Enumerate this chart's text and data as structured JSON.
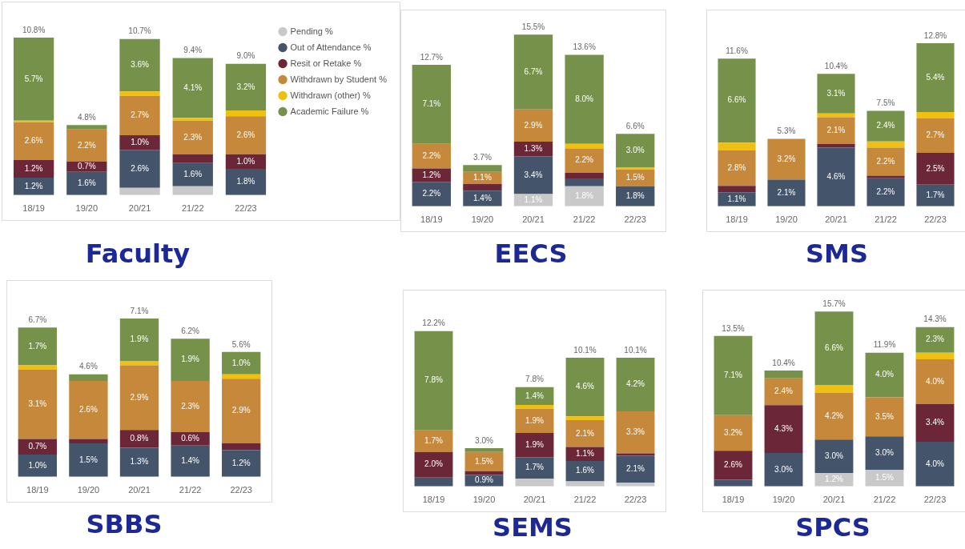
{
  "chart_data": [
    {
      "type": "bar",
      "title": "Faculty",
      "stacked": true,
      "legend": "right",
      "categories": [
        "18/19",
        "19/20",
        "20/21",
        "21/22",
        "22/23"
      ],
      "series": [
        {
          "name": "Pending %",
          "color": "#c9c9c9",
          "values": [
            0,
            0,
            0.5,
            0.6,
            0
          ],
          "value_labels": [
            null,
            null,
            null,
            null,
            null
          ]
        },
        {
          "name": "Out of Attendance %",
          "color": "#44546a",
          "values": [
            1.2,
            1.6,
            2.6,
            1.6,
            1.8
          ],
          "value_labels": [
            "1.2%",
            "1.6%",
            "2.6%",
            "1.6%",
            "1.8%"
          ]
        },
        {
          "name": "Resit or Retake %",
          "color": "#6b2737",
          "values": [
            1.2,
            0.7,
            1.0,
            0.6,
            1.0
          ],
          "value_labels": [
            "1.2%",
            "0.7%",
            "1.0%",
            null,
            "1.0%"
          ]
        },
        {
          "name": "Withdrawn by Student %",
          "color": "#c6883a",
          "values": [
            2.6,
            2.2,
            2.7,
            2.3,
            2.6
          ],
          "value_labels": [
            "2.6%",
            "2.2%",
            "2.7%",
            "2.3%",
            "2.6%"
          ]
        },
        {
          "name": "Withdrawn (other) %",
          "color": "#f0c010",
          "values": [
            0.1,
            0,
            0.3,
            0.2,
            0.4
          ],
          "value_labels": [
            null,
            null,
            null,
            null,
            null
          ]
        },
        {
          "name": "Academic Failure %",
          "color": "#76924a",
          "values": [
            5.7,
            0.3,
            3.6,
            4.1,
            3.2
          ],
          "value_labels": [
            "5.7%",
            null,
            "3.6%",
            "4.1%",
            "3.2%"
          ]
        }
      ],
      "totals": [
        "10.8%",
        "4.8%",
        "10.7%",
        "9.4%",
        "9.0%"
      ]
    },
    {
      "type": "bar",
      "title": "EECS",
      "stacked": true,
      "categories": [
        "18/19",
        "19/20",
        "20/21",
        "21/22",
        "22/23"
      ],
      "series": [
        {
          "color": "#c9c9c9",
          "values": [
            0,
            0,
            1.1,
            1.8,
            null
          ],
          "value_labels": [
            null,
            null,
            "1.1%",
            "1.8%",
            null
          ]
        },
        {
          "color": "#44546a",
          "values": [
            2.2,
            1.4,
            3.4,
            0.7,
            1.8
          ],
          "value_labels": [
            "2.2%",
            "1.4%",
            "3.4%",
            null,
            "1.8%"
          ]
        },
        {
          "color": "#6b2737",
          "values": [
            1.2,
            0.6,
            1.3,
            0.5,
            0
          ],
          "value_labels": [
            "1.2%",
            null,
            "1.3%",
            null,
            null
          ]
        },
        {
          "color": "#c6883a",
          "values": [
            2.2,
            1.1,
            2.9,
            2.2,
            1.5
          ],
          "value_labels": [
            "2.2%",
            "1.1%",
            "2.9%",
            "2.2%",
            "1.5%"
          ]
        },
        {
          "color": "#f0c010",
          "values": [
            0,
            0,
            0,
            0.4,
            0.2
          ],
          "value_labels": [
            null,
            null,
            null,
            null,
            null
          ]
        },
        {
          "color": "#76924a",
          "values": [
            7.1,
            0.6,
            6.7,
            8.0,
            3.0
          ],
          "value_labels": [
            "7.1%",
            null,
            "6.7%",
            "8.0%",
            "3.0%"
          ]
        }
      ],
      "totals": [
        "12.7%",
        "3.7%",
        "15.5%",
        "13.6%",
        "6.6%"
      ]
    },
    {
      "type": "bar",
      "title": "SMS",
      "stacked": true,
      "categories": [
        "18/19",
        "19/20",
        "20/21",
        "21/22",
        "22/23"
      ],
      "series": [
        {
          "color": "#44546a",
          "values": [
            1.1,
            2.1,
            4.6,
            2.2,
            1.7
          ],
          "value_labels": [
            "1.1%",
            "2.1%",
            "4.6%",
            "2.2%",
            "1.7%"
          ]
        },
        {
          "color": "#6b2737",
          "values": [
            0.5,
            0,
            0.3,
            0.2,
            2.5
          ],
          "value_labels": [
            null,
            null,
            null,
            null,
            "2.5%"
          ]
        },
        {
          "color": "#c6883a",
          "values": [
            2.8,
            3.2,
            2.1,
            2.2,
            2.7
          ],
          "value_labels": [
            "2.8%",
            "3.2%",
            "2.1%",
            "2.2%",
            "2.7%"
          ]
        },
        {
          "color": "#f0c010",
          "values": [
            0.6,
            0,
            0.3,
            0.5,
            0.5
          ],
          "value_labels": [
            null,
            null,
            null,
            null,
            null
          ]
        },
        {
          "color": "#76924a",
          "values": [
            6.6,
            0,
            3.1,
            2.4,
            5.4
          ],
          "value_labels": [
            "6.6%",
            null,
            "3.1%",
            "2.4%",
            "5.4%"
          ]
        }
      ],
      "totals": [
        "11.6%",
        "5.3%",
        "10.4%",
        "7.5%",
        "12.8%"
      ]
    },
    {
      "type": "bar",
      "title": "SBBS",
      "stacked": true,
      "categories": [
        "18/19",
        "19/20",
        "20/21",
        "21/22",
        "22/23"
      ],
      "series": [
        {
          "color": "#44546a",
          "values": [
            1.0,
            1.5,
            1.3,
            1.4,
            1.2
          ],
          "value_labels": [
            "1.0%",
            "1.5%",
            "1.3%",
            "1.4%",
            "1.2%"
          ]
        },
        {
          "color": "#6b2737",
          "values": [
            0.7,
            0.2,
            0.8,
            0.6,
            0.3
          ],
          "value_labels": [
            "0.7%",
            null,
            "0.8%",
            "0.6%",
            null
          ]
        },
        {
          "color": "#c6883a",
          "values": [
            3.1,
            2.6,
            2.9,
            2.3,
            2.9
          ],
          "value_labels": [
            "3.1%",
            "2.6%",
            "2.9%",
            "2.3%",
            "2.9%"
          ]
        },
        {
          "color": "#f0c010",
          "values": [
            0.2,
            0,
            0.2,
            0,
            0.2
          ],
          "value_labels": [
            null,
            null,
            null,
            null,
            null
          ]
        },
        {
          "color": "#76924a",
          "values": [
            1.7,
            0.3,
            1.9,
            1.9,
            1.0
          ],
          "value_labels": [
            "1.7%",
            null,
            "1.9%",
            "1.9%",
            "1.0%"
          ]
        }
      ],
      "totals": [
        "6.7%",
        "4.6%",
        "7.1%",
        "6.2%",
        "5.6%"
      ]
    },
    {
      "type": "bar",
      "title": "SEMS",
      "stacked": true,
      "categories": [
        "18/19",
        "19/20",
        "20/21",
        "21/22",
        "22/23"
      ],
      "series": [
        {
          "color": "#c9c9c9",
          "values": [
            0,
            0,
            0.6,
            0.4,
            0.3
          ],
          "value_labels": [
            null,
            null,
            null,
            null,
            null
          ]
        },
        {
          "color": "#44546a",
          "values": [
            0.7,
            0.9,
            1.7,
            1.6,
            2.1
          ],
          "value_labels": [
            null,
            "0.9%",
            "1.7%",
            "1.6%",
            "2.1%"
          ]
        },
        {
          "color": "#6b2737",
          "values": [
            2.0,
            0.3,
            1.9,
            1.1,
            0.2
          ],
          "value_labels": [
            "2.0%",
            null,
            "1.9%",
            "1.1%",
            null
          ]
        },
        {
          "color": "#c6883a",
          "values": [
            1.7,
            1.5,
            1.9,
            2.1,
            3.3
          ],
          "value_labels": [
            "1.7%",
            "1.5%",
            "1.9%",
            "2.1%",
            "3.3%"
          ]
        },
        {
          "color": "#f0c010",
          "values": [
            0,
            0,
            0.3,
            0.3,
            0
          ],
          "value_labels": [
            null,
            null,
            null,
            null,
            null
          ]
        },
        {
          "color": "#76924a",
          "values": [
            7.8,
            0.3,
            1.4,
            4.6,
            4.2
          ],
          "value_labels": [
            "7.8%",
            null,
            "1.4%",
            "4.6%",
            "4.2%"
          ]
        }
      ],
      "totals": [
        "12.2%",
        "3.0%",
        "7.8%",
        "10.1%",
        "10.1%"
      ]
    },
    {
      "type": "bar",
      "title": "SPCS",
      "stacked": true,
      "categories": [
        "18/19",
        "19/20",
        "20/21",
        "21/22",
        "22/23"
      ],
      "series": [
        {
          "color": "#c9c9c9",
          "values": [
            0,
            0,
            1.2,
            1.5,
            0
          ],
          "value_labels": [
            null,
            null,
            "1.2%",
            "1.5%",
            null
          ]
        },
        {
          "color": "#44546a",
          "values": [
            0.6,
            3.0,
            3.0,
            3.0,
            4.0
          ],
          "value_labels": [
            null,
            "3.0%",
            "3.0%",
            "3.0%",
            "4.0%"
          ]
        },
        {
          "color": "#6b2737",
          "values": [
            2.6,
            4.3,
            0,
            0,
            3.4
          ],
          "value_labels": [
            "2.6%",
            "4.3%",
            null,
            null,
            "3.4%"
          ]
        },
        {
          "color": "#c6883a",
          "values": [
            3.2,
            2.4,
            4.2,
            3.5,
            4.0
          ],
          "value_labels": [
            "3.2%",
            "2.4%",
            "4.2%",
            "3.5%",
            "4.0%"
          ]
        },
        {
          "color": "#f0c010",
          "values": [
            0,
            0,
            0.7,
            0,
            0.6
          ],
          "value_labels": [
            null,
            null,
            null,
            null,
            null
          ]
        },
        {
          "color": "#76924a",
          "values": [
            7.1,
            0.7,
            6.6,
            4.0,
            2.3
          ],
          "value_labels": [
            "7.1%",
            null,
            "6.6%",
            "4.0%",
            "2.3%"
          ]
        }
      ],
      "totals": [
        "13.5%",
        "10.4%",
        "15.7%",
        "11.9%",
        "14.3%"
      ]
    }
  ]
}
